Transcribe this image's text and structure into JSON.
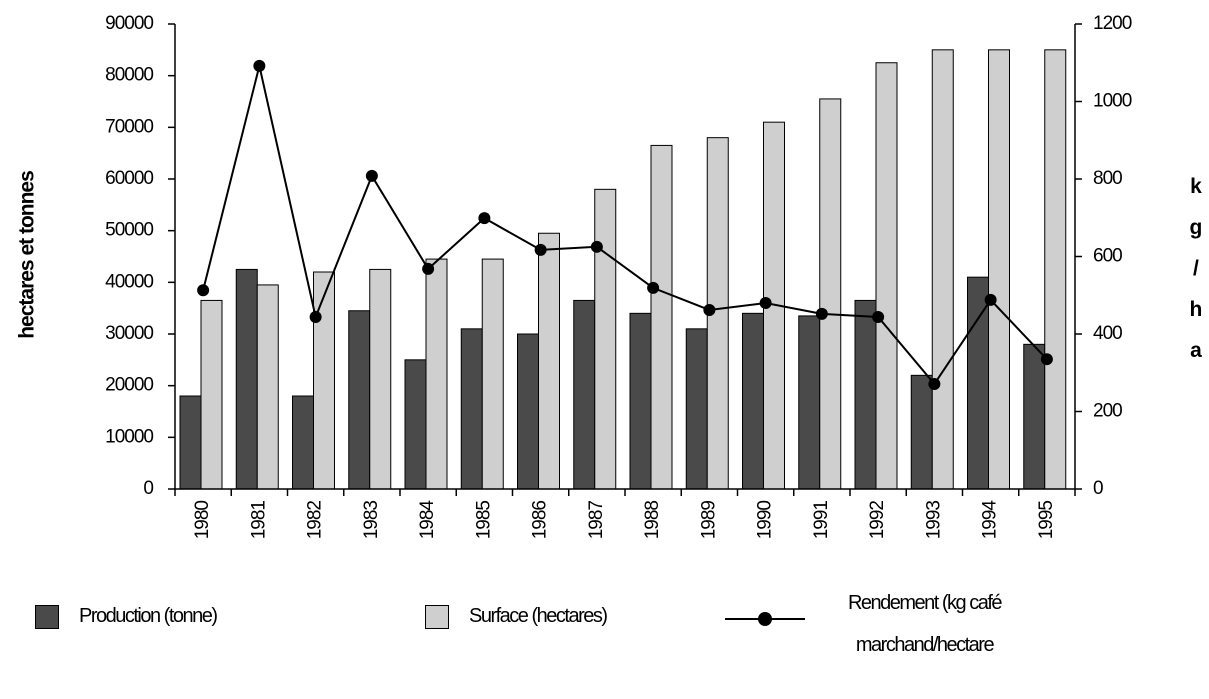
{
  "chart_data": {
    "type": "bar_line",
    "y_label": "hectares et tonnes",
    "y2_label": "kg/ha",
    "categories": [
      "1980",
      "1981",
      "1982",
      "1983",
      "1984",
      "1985",
      "1986",
      "1987",
      "1988",
      "1989",
      "1990",
      "1991",
      "1992",
      "1993",
      "1994",
      "1995"
    ],
    "series": [
      {
        "name": "Production (tonne)",
        "type": "bar",
        "color": "#4a4a4a",
        "values": [
          18000,
          42500,
          18000,
          34500,
          25000,
          31000,
          30000,
          36500,
          34000,
          31000,
          34000,
          33500,
          36500,
          22000,
          41000,
          28000
        ]
      },
      {
        "name": "Surface (hectares)",
        "type": "bar",
        "color": "#cfcfcf",
        "values": [
          36500,
          39500,
          42000,
          42500,
          44500,
          44500,
          49500,
          58000,
          66500,
          68000,
          71000,
          75500,
          82500,
          85000,
          85000,
          85000
        ]
      },
      {
        "name": "Rendement (kg café marchand/hectare",
        "type": "line",
        "axis": "y2",
        "color": "#000000",
        "values": [
          513,
          1092,
          444,
          808,
          568,
          699,
          617,
          625,
          519,
          462,
          480,
          452,
          444,
          271,
          488,
          335
        ]
      }
    ],
    "ylim": [
      0,
      90000
    ],
    "yticks": [
      0,
      10000,
      20000,
      30000,
      40000,
      50000,
      60000,
      70000,
      80000,
      90000
    ],
    "y2lim": [
      0,
      1200
    ],
    "y2ticks": [
      0,
      200,
      400,
      600,
      800,
      1000,
      1200
    ],
    "grid": false
  }
}
